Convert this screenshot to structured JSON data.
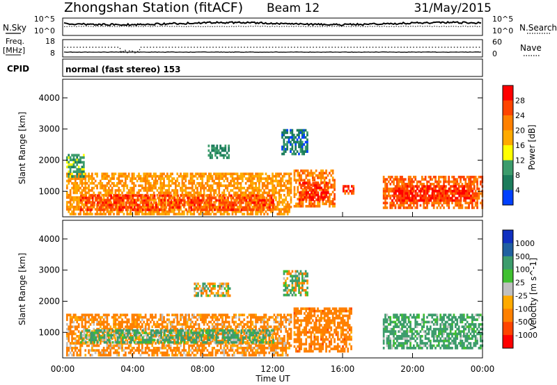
{
  "header": {
    "station": "Zhongshan Station (fitACF)",
    "beam": "Beam 12",
    "date": "31/May/2015"
  },
  "top_panels": {
    "nsky_label": "N.Sky",
    "nsky_ticks": [
      "10^5",
      "10^0"
    ],
    "nsearch_label": "N.Search",
    "nsearch_ticks": [
      "10^5",
      "10^0"
    ],
    "freq_label": "Freq.",
    "freq_unit": "[MHz]",
    "freq_ticks": [
      "18",
      "8"
    ],
    "nave_label": "Nave",
    "nave_ticks": [
      "60",
      "0"
    ],
    "cpid_label": "CPID",
    "cpid_text": "normal (fast stereo) 153"
  },
  "power_panel": {
    "ylabel": "Slant Range [km]",
    "yticks": [
      "4000",
      "3000",
      "2000",
      "1000"
    ],
    "colorbar_label": "Power [dB]",
    "colorbar_ticks": [
      "28",
      "24",
      "20",
      "16",
      "12",
      "8",
      "4"
    ],
    "colors": [
      "#ff0000",
      "#ff4400",
      "#ff8000",
      "#ffaa00",
      "#ffff00",
      "#3c9c6c",
      "#1c7c5c",
      "#0040ff"
    ]
  },
  "velocity_panel": {
    "ylabel": "Slant Range [km]",
    "yticks": [
      "4000",
      "3000",
      "2000",
      "1000"
    ],
    "colorbar_label": "Velocity [m s^-1]",
    "colorbar_ticks": [
      "1000",
      "500",
      "100",
      "25",
      "-25",
      "-100",
      "-500",
      "-1000"
    ],
    "colors": [
      "#1030c0",
      "#2060a0",
      "#3c9c6c",
      "#40c030",
      "#c0c0c0",
      "#ffaa00",
      "#ff8000",
      "#ff4400",
      "#ff0000"
    ]
  },
  "x_axis": {
    "label": "Time UT",
    "ticks": [
      "00:00",
      "04:00",
      "08:00",
      "12:00",
      "16:00",
      "20:00",
      "00:00"
    ]
  },
  "chart_data": [
    {
      "type": "heatmap",
      "title": "Power",
      "xlabel": "Time UT",
      "ylabel": "Slant Range [km]",
      "x_range_hours": [
        0,
        24
      ],
      "ylim": [
        180,
        4600
      ],
      "colorbar_range": [
        0,
        32
      ],
      "colorbar_label": "Power [dB]",
      "regions": [
        {
          "x": [
            0.2,
            13.0
          ],
          "y": [
            300,
            1600
          ],
          "value": 20
        },
        {
          "x": [
            1.0,
            12.0
          ],
          "y": [
            400,
            900
          ],
          "value": 26
        },
        {
          "x": [
            13.2,
            15.5
          ],
          "y": [
            500,
            1700
          ],
          "value": 22
        },
        {
          "x": [
            13.5,
            15.2
          ],
          "y": [
            700,
            1300
          ],
          "value": 28
        },
        {
          "x": [
            16.0,
            16.6
          ],
          "y": [
            900,
            1200
          ],
          "value": 26
        },
        {
          "x": [
            18.3,
            24.0
          ],
          "y": [
            500,
            1500
          ],
          "value": 24
        },
        {
          "x": [
            18.8,
            23.5
          ],
          "y": [
            700,
            1200
          ],
          "value": 28
        },
        {
          "x": [
            8.3,
            9.5
          ],
          "y": [
            2100,
            2500
          ],
          "value": 8
        },
        {
          "x": [
            12.5,
            14.0
          ],
          "y": [
            2200,
            3000
          ],
          "value": 6
        },
        {
          "x": [
            0.2,
            1.2
          ],
          "y": [
            1500,
            2200
          ],
          "value": 10
        }
      ]
    },
    {
      "type": "heatmap",
      "title": "Velocity",
      "xlabel": "Time UT",
      "ylabel": "Slant Range [km]",
      "x_range_hours": [
        0,
        24
      ],
      "ylim": [
        180,
        4600
      ],
      "colorbar_range": [
        -1000,
        1000
      ],
      "colorbar_label": "Velocity [m s^-1]",
      "regions": [
        {
          "x": [
            0.2,
            13.0
          ],
          "y": [
            300,
            1600
          ],
          "value": -200
        },
        {
          "x": [
            1.0,
            12.0
          ],
          "y": [
            700,
            1100
          ],
          "value": 150
        },
        {
          "x": [
            13.2,
            16.5
          ],
          "y": [
            400,
            1800
          ],
          "value": -300
        },
        {
          "x": [
            18.3,
            24.0
          ],
          "y": [
            500,
            1600
          ],
          "value": 200
        },
        {
          "x": [
            7.5,
            9.6
          ],
          "y": [
            2200,
            2600
          ],
          "value": 20
        },
        {
          "x": [
            12.6,
            14.0
          ],
          "y": [
            2200,
            3000
          ],
          "value": 50
        }
      ]
    }
  ]
}
